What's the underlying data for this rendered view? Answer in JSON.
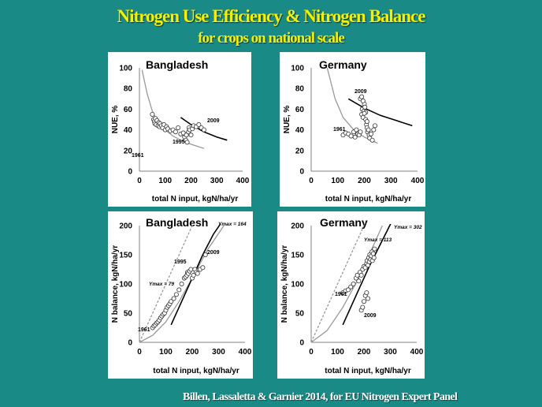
{
  "header": {
    "title": "Nitrogen Use Efficiency & Nitrogen Balance",
    "subtitle": "for crops on national scale"
  },
  "footer": {
    "credit": "Billen, Lassaletta & Garnier 2014, for EU Nitrogen Expert Panel"
  },
  "colors": {
    "background": "#1a8a86",
    "title": "#f4f000",
    "grey_curve": "#999999",
    "black_curve": "#000000"
  },
  "chart_data": [
    {
      "type": "scatter",
      "title": "Bangladesh",
      "xlabel": "total N input, kgN/ha/yr",
      "ylabel": "NUE, %",
      "xlim": [
        0,
        400
      ],
      "ylim": [
        0,
        100
      ],
      "xticks": [
        "0",
        "100",
        "200",
        "300",
        "400"
      ],
      "yticks": [
        "0",
        "20",
        "40",
        "60",
        "80",
        "100"
      ],
      "annotations": [
        "1961",
        "1995",
        "2009"
      ],
      "series": [
        {
          "x": [
            50,
            55,
            58,
            60,
            62,
            65,
            68,
            72,
            75,
            78,
            80,
            85,
            90,
            95,
            100,
            105,
            110,
            120,
            130,
            140,
            150,
            160,
            170,
            175,
            180,
            182,
            185,
            190,
            192,
            195,
            200,
            205,
            210,
            220,
            230,
            240,
            250
          ],
          "y": [
            55,
            50,
            48,
            46,
            51,
            45,
            49,
            44,
            47,
            43,
            46,
            44,
            42,
            45,
            40,
            43,
            41,
            39,
            40,
            38,
            42,
            36,
            37,
            33,
            30,
            35,
            28,
            38,
            42,
            40,
            35,
            41,
            44,
            43,
            45,
            42,
            40
          ]
        }
      ],
      "curves": [
        {
          "color": "grey",
          "x": [
            10,
            30,
            50,
            70,
            100,
            130,
            160,
            200,
            250
          ],
          "y": [
            98,
            75,
            58,
            48,
            40,
            34,
            30,
            26,
            22
          ]
        },
        {
          "color": "black",
          "x": [
            160,
            200,
            250,
            300,
            340
          ],
          "y": [
            52,
            45,
            38,
            33,
            30
          ]
        }
      ]
    },
    {
      "type": "scatter",
      "title": "Germany",
      "xlabel": "total N input, kgN/ha/yr",
      "ylabel": "NUE, %",
      "xlim": [
        0,
        400
      ],
      "ylim": [
        0,
        100
      ],
      "xticks": [
        "0",
        "100",
        "200",
        "300",
        "400"
      ],
      "yticks": [
        "0",
        "20",
        "40",
        "60",
        "80",
        "100"
      ],
      "annotations": [
        "2009",
        "1961"
      ],
      "series": [
        {
          "x": [
            120,
            130,
            140,
            150,
            160,
            165,
            170,
            175,
            180,
            185,
            190,
            192,
            195,
            198,
            200,
            202,
            205,
            208,
            210,
            212,
            215,
            218,
            220,
            225,
            230,
            235,
            240,
            185,
            190,
            195,
            200,
            205,
            210
          ],
          "y": [
            35,
            37,
            36,
            34,
            38,
            33,
            40,
            36,
            35,
            38,
            55,
            60,
            52,
            58,
            65,
            62,
            57,
            45,
            42,
            38,
            40,
            35,
            32,
            36,
            30,
            40,
            44,
            70,
            72,
            68,
            56,
            50,
            48
          ]
        }
      ],
      "curves": [
        {
          "color": "grey",
          "x": [
            60,
            90,
            120,
            160,
            200,
            250
          ],
          "y": [
            100,
            70,
            52,
            40,
            33,
            27
          ]
        },
        {
          "color": "black",
          "x": [
            140,
            200,
            260,
            320,
            380
          ],
          "y": [
            70,
            61,
            54,
            49,
            44
          ]
        }
      ]
    },
    {
      "type": "scatter",
      "title": "Bangladesh",
      "xlabel": "total N input, kgN/ha/yr",
      "ylabel": "N balance, kgN/ha/yr",
      "xlim": [
        0,
        400
      ],
      "ylim": [
        0,
        200
      ],
      "xticks": [
        "0",
        "100",
        "200",
        "300",
        "400"
      ],
      "yticks": [
        "0",
        "50",
        "100",
        "150",
        "200"
      ],
      "annotations": [
        "Ymax = 164",
        "1995",
        "2009",
        "Ymax = 79",
        "1961"
      ],
      "series": [
        {
          "x": [
            50,
            55,
            60,
            65,
            70,
            75,
            80,
            85,
            90,
            95,
            100,
            105,
            110,
            115,
            120,
            130,
            140,
            150,
            160,
            170,
            175,
            180,
            182,
            185,
            190,
            195,
            200,
            205,
            210,
            215,
            220,
            230,
            240,
            250
          ],
          "y": [
            25,
            28,
            30,
            33,
            35,
            38,
            42,
            45,
            48,
            50,
            55,
            60,
            63,
            66,
            70,
            75,
            82,
            90,
            100,
            110,
            112,
            115,
            120,
            118,
            122,
            125,
            110,
            115,
            125,
            120,
            118,
            125,
            128,
            150
          ]
        }
      ],
      "curves": [
        {
          "color": "grey-dashed",
          "x": [
            0,
            50,
            100,
            150,
            200
          ],
          "y": [
            0,
            50,
            100,
            150,
            200
          ]
        },
        {
          "color": "grey",
          "x": [
            0,
            50,
            100,
            150,
            200,
            260,
            320
          ],
          "y": [
            0,
            12,
            35,
            70,
            110,
            160,
            200
          ]
        },
        {
          "color": "black",
          "x": [
            120,
            160,
            200,
            240,
            280,
            310
          ],
          "y": [
            30,
            70,
            110,
            150,
            185,
            205
          ]
        }
      ]
    },
    {
      "type": "scatter",
      "title": "Germany",
      "xlabel": "total N input, kgN/ha/yr",
      "ylabel": "N balance, kgN/ha/yr",
      "xlim": [
        0,
        400
      ],
      "ylim": [
        0,
        200
      ],
      "xticks": [
        "0",
        "100",
        "200",
        "300",
        "400"
      ],
      "yticks": [
        "0",
        "50",
        "100",
        "150",
        "200"
      ],
      "annotations": [
        "Ymax = 302",
        "Ymax = 113",
        "1961",
        "2009"
      ],
      "series": [
        {
          "x": [
            120,
            130,
            140,
            150,
            160,
            170,
            175,
            180,
            185,
            190,
            195,
            200,
            205,
            210,
            212,
            215,
            218,
            220,
            222,
            225,
            228,
            230,
            232,
            235,
            238,
            240,
            190,
            195,
            200,
            205,
            210,
            215
          ],
          "y": [
            85,
            88,
            90,
            95,
            100,
            110,
            115,
            105,
            120,
            115,
            125,
            130,
            128,
            135,
            140,
            132,
            145,
            138,
            150,
            142,
            148,
            155,
            140,
            152,
            145,
            160,
            55,
            60,
            70,
            80,
            85,
            75
          ]
        }
      ],
      "curves": [
        {
          "color": "grey-dashed",
          "x": [
            0,
            60,
            120,
            180,
            220
          ],
          "y": [
            0,
            60,
            120,
            180,
            220
          ]
        },
        {
          "color": "grey",
          "x": [
            0,
            60,
            120,
            180,
            230,
            270
          ],
          "y": [
            0,
            20,
            60,
            110,
            160,
            200
          ]
        },
        {
          "color": "black",
          "x": [
            120,
            170,
            220,
            270,
            320
          ],
          "y": [
            30,
            80,
            130,
            175,
            220
          ]
        }
      ]
    }
  ]
}
